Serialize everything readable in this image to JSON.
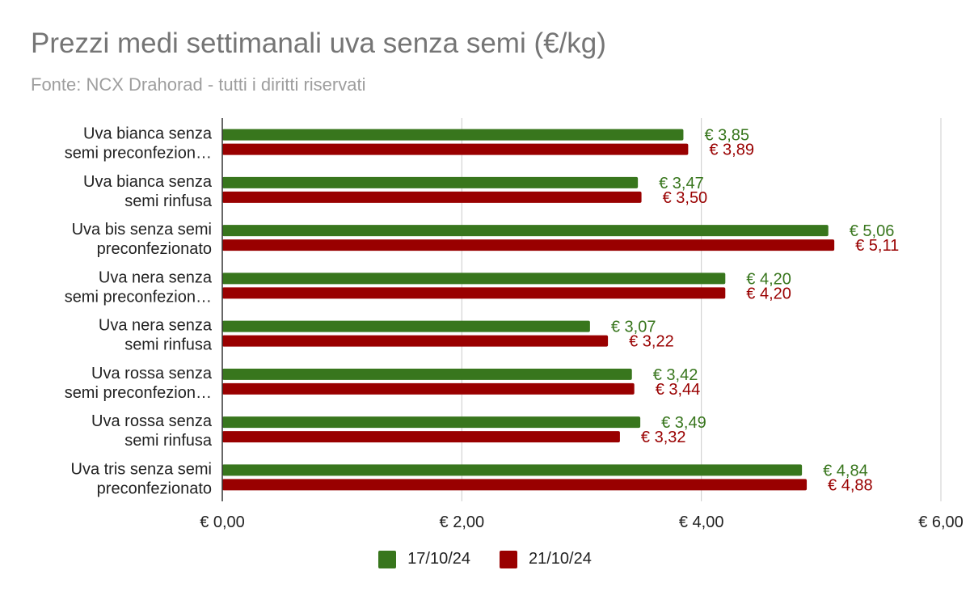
{
  "header": {
    "title": "Prezzi medi settimanali uva senza semi (€/kg)",
    "subtitle": "Fonte: NCX Drahorad - tutti i diritti riservati"
  },
  "colors": {
    "series_1": "#38761d",
    "series_2": "#990000",
    "grid": "#cccccc",
    "axis": "#333333",
    "text": "#222222"
  },
  "chart_data": {
    "type": "bar",
    "orientation": "horizontal",
    "title": "Prezzi medi settimanali uva senza semi (€/kg)",
    "subtitle": "Fonte: NCX Drahorad - tutti i diritti riservati",
    "categories": [
      [
        "Uva bianca senza",
        "semi preconfezion…"
      ],
      [
        "Uva bianca senza",
        "semi rinfusa"
      ],
      [
        "Uva bis senza semi",
        "preconfezionato"
      ],
      [
        "Uva nera senza",
        "semi preconfezion…"
      ],
      [
        "Uva nera senza",
        "semi rinfusa"
      ],
      [
        "Uva rossa senza",
        "semi preconfezion…"
      ],
      [
        "Uva rossa senza",
        "semi rinfusa"
      ],
      [
        "Uva tris senza semi",
        "preconfezionato"
      ]
    ],
    "series": [
      {
        "name": "17/10/24",
        "values": [
          3.85,
          3.47,
          5.06,
          4.2,
          3.07,
          3.42,
          3.49,
          4.84
        ],
        "labels": [
          "€ 3,85",
          "€ 3,47",
          "€ 5,06",
          "€ 4,20",
          "€ 3,07",
          "€ 3,42",
          "€ 3,49",
          "€ 4,84"
        ]
      },
      {
        "name": "21/10/24",
        "values": [
          3.89,
          3.5,
          5.11,
          4.2,
          3.22,
          3.44,
          3.32,
          4.88
        ],
        "labels": [
          "€ 3,89",
          "€ 3,50",
          "€ 5,11",
          "€ 4,20",
          "€ 3,22",
          "€ 3,44",
          "€ 3,32",
          "€ 4,88"
        ]
      }
    ],
    "xlim": [
      0,
      6
    ],
    "xticks": [
      0,
      2,
      4,
      6
    ],
    "xtick_labels": [
      "€ 0,00",
      "€ 2,00",
      "€ 4,00",
      "€ 6,00"
    ],
    "grid": true,
    "legend_position": "bottom"
  }
}
